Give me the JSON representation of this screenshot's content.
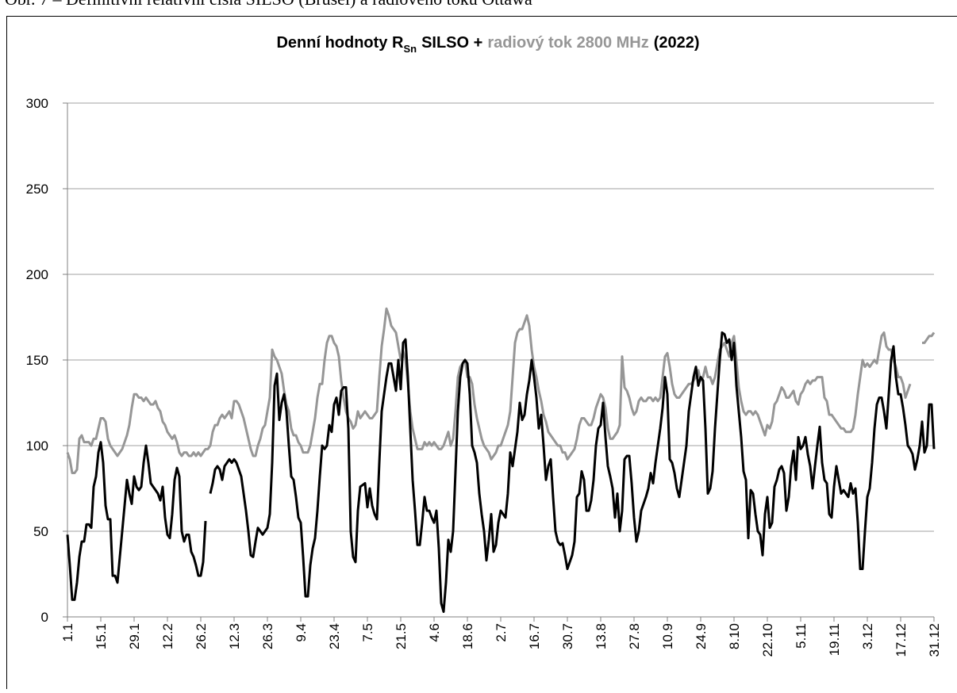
{
  "caption": "Obr. 7 – Definitivní relativní čísla SILSO (Brusel) a radiového toku Ottawa",
  "chart_data": {
    "type": "line",
    "title": [
      "Denní hodnoty R",
      "Sn",
      "SILSO +",
      "radiový tok 2800 MHz",
      "(2022)"
    ],
    "title_highlight_color": "#969696",
    "categories": [
      "1.1",
      null,
      null,
      null,
      null,
      null,
      null,
      null,
      null,
      null,
      null,
      null,
      null,
      null,
      "15.1",
      null,
      null,
      null,
      null,
      null,
      null,
      null,
      null,
      null,
      null,
      null,
      null,
      null,
      "29.1",
      null,
      null,
      null,
      null,
      null,
      null,
      null,
      null,
      null,
      null,
      null,
      null,
      null,
      "12.2",
      null,
      null,
      null,
      null,
      null,
      null,
      null,
      null,
      null,
      null,
      null,
      null,
      null,
      "26.2",
      null,
      null,
      null,
      null,
      null,
      null,
      null,
      null,
      null,
      null,
      null,
      null,
      null,
      "12.3",
      null,
      null,
      null,
      null,
      null,
      null,
      null,
      null,
      null,
      null,
      null,
      null,
      null,
      "26.3",
      null,
      null,
      null,
      null,
      null,
      null,
      null,
      null,
      null,
      null,
      null,
      null,
      null,
      "9.4",
      null,
      null,
      null,
      null,
      null,
      null,
      null,
      null,
      null,
      null,
      null,
      null,
      null,
      "23.4",
      null,
      null,
      null,
      null,
      null,
      null,
      null,
      null,
      null,
      null,
      null,
      null,
      null,
      "7.5",
      null,
      null,
      null,
      null,
      null,
      null,
      null,
      null,
      null,
      null,
      null,
      null,
      null,
      "21.5",
      null,
      null,
      null,
      null,
      null,
      null,
      null,
      null,
      null,
      null,
      null,
      null,
      null,
      "4.6",
      null,
      null,
      null,
      null,
      null,
      null,
      null,
      null,
      null,
      null,
      null,
      null,
      null,
      "18.6",
      null,
      null,
      null,
      null,
      null,
      null,
      null,
      null,
      null,
      null,
      null,
      null,
      null,
      "2.7",
      null,
      null,
      null,
      null,
      null,
      null,
      null,
      null,
      null,
      null,
      null,
      null,
      null,
      "16.7",
      null,
      null,
      null,
      null,
      null,
      null,
      null,
      null,
      null,
      null,
      null,
      null,
      null,
      "30.7",
      null,
      null,
      null,
      null,
      null,
      null,
      null,
      null,
      null,
      null,
      null,
      null,
      null,
      "13.8",
      null,
      null,
      null,
      null,
      null,
      null,
      null,
      null,
      null,
      null,
      null,
      null,
      null,
      "27.8",
      null,
      null,
      null,
      null,
      null,
      null,
      null,
      null,
      null,
      null,
      null,
      null,
      null,
      "10.9",
      null,
      null,
      null,
      null,
      null,
      null,
      null,
      null,
      null,
      null,
      null,
      null,
      null,
      "24.9",
      null,
      null,
      null,
      null,
      null,
      null,
      null,
      null,
      null,
      null,
      null,
      null,
      null,
      "8.10",
      null,
      null,
      null,
      null,
      null,
      null,
      null,
      null,
      null,
      null,
      null,
      null,
      null,
      "22.10",
      null,
      null,
      null,
      null,
      null,
      null,
      null,
      null,
      null,
      null,
      null,
      null,
      null,
      "5.11",
      null,
      null,
      null,
      null,
      null,
      null,
      null,
      null,
      null,
      null,
      null,
      null,
      null,
      "19.11",
      null,
      null,
      null,
      null,
      null,
      null,
      null,
      null,
      null,
      null,
      null,
      null,
      null,
      "3.12",
      null,
      null,
      null,
      null,
      null,
      null,
      null,
      null,
      null,
      null,
      null,
      null,
      null,
      "17.12",
      null,
      null,
      null,
      null,
      null,
      null,
      null,
      null,
      null,
      null,
      null,
      null,
      null,
      "31.12"
    ],
    "series": [
      {
        "color": "#969696",
        "values": [
          96,
          92,
          84,
          84,
          86,
          104,
          106,
          102,
          102,
          102,
          100,
          104,
          104,
          110,
          116,
          116,
          114,
          104,
          100,
          98,
          96,
          94,
          96,
          98,
          102,
          106,
          112,
          122,
          130,
          130,
          128,
          128,
          126,
          128,
          126,
          124,
          124,
          126,
          122,
          120,
          114,
          112,
          108,
          106,
          104,
          106,
          102,
          96,
          94,
          96,
          96,
          94,
          94,
          96,
          94,
          96,
          94,
          96,
          98,
          98,
          100,
          108,
          112,
          112,
          116,
          118,
          116,
          118,
          120,
          116,
          126,
          126,
          124,
          120,
          116,
          110,
          104,
          98,
          94,
          94,
          100,
          104,
          110,
          112,
          120,
          128,
          156,
          152,
          150,
          146,
          142,
          132,
          124,
          120,
          110,
          106,
          106,
          102,
          100,
          96,
          96,
          96,
          100,
          108,
          116,
          128,
          136,
          136,
          150,
          160,
          164,
          164,
          160,
          158,
          152,
          138,
          128,
          120,
          116,
          114,
          110,
          112,
          120,
          116,
          118,
          120,
          118,
          116,
          116,
          118,
          120,
          140,
          158,
          168,
          180,
          176,
          170,
          168,
          166,
          158,
          150,
          155,
          150,
          136,
          120,
          110,
          104,
          98,
          98,
          98,
          102,
          100,
          102,
          100,
          102,
          100,
          98,
          98,
          100,
          104,
          108,
          100,
          104,
          120,
          140,
          146,
          148,
          150,
          140,
          140,
          136,
          124,
          116,
          110,
          104,
          100,
          98,
          96,
          92,
          94,
          96,
          100,
          100,
          104,
          108,
          112,
          120,
          140,
          160,
          166,
          168,
          168,
          172,
          176,
          170,
          156,
          146,
          140,
          132,
          126,
          118,
          114,
          108,
          106,
          104,
          102,
          100,
          100,
          96,
          96,
          92,
          94,
          96,
          98,
          104,
          112,
          116,
          116,
          114,
          112,
          112,
          116,
          122,
          126,
          130,
          128,
          122,
          110,
          104,
          104,
          106,
          108,
          112,
          152,
          134,
          132,
          128,
          122,
          118,
          120,
          126,
          128,
          126,
          126,
          128,
          128,
          126,
          128,
          126,
          128,
          140,
          152,
          154,
          146,
          136,
          130,
          128,
          128,
          130,
          132,
          134,
          136,
          136,
          138,
          140,
          144,
          138,
          140,
          146,
          140,
          140,
          136,
          140,
          148,
          156,
          158,
          160,
          156,
          152,
          160,
          164,
          150,
          134,
          126,
          120,
          118,
          120,
          120,
          118,
          120,
          118,
          114,
          110,
          106,
          112,
          110,
          114,
          124,
          126,
          130,
          134,
          132,
          128,
          128,
          130,
          132,
          126,
          124,
          130,
          132,
          136,
          138,
          136,
          138,
          138,
          140,
          140,
          140,
          128,
          126,
          118,
          118,
          116,
          114,
          112,
          110,
          110,
          108,
          108,
          108,
          110,
          118,
          130,
          140,
          150,
          146,
          148,
          146,
          148,
          150,
          148,
          156,
          164,
          166,
          158,
          156,
          156,
          150,
          146,
          140,
          140,
          136,
          128,
          132,
          136,
          null,
          null,
          null,
          null,
          160,
          160,
          162,
          164,
          164,
          166
        ]
      },
      {
        "color": "#000000",
        "values": [
          48,
          30,
          10,
          10,
          20,
          35,
          44,
          44,
          54,
          54,
          52,
          76,
          82,
          96,
          102,
          90,
          65,
          57,
          57,
          24,
          24,
          20,
          35,
          50,
          65,
          80,
          72,
          66,
          82,
          76,
          74,
          76,
          90,
          100,
          90,
          78,
          76,
          74,
          72,
          68,
          76,
          58,
          48,
          46,
          60,
          80,
          87,
          82,
          50,
          44,
          48,
          48,
          38,
          35,
          30,
          24,
          24,
          32,
          56,
          null,
          72,
          78,
          86,
          88,
          86,
          80,
          88,
          90,
          92,
          90,
          92,
          90,
          86,
          82,
          72,
          62,
          50,
          36,
          35,
          44,
          52,
          50,
          48,
          50,
          52,
          60,
          90,
          135,
          142,
          115,
          125,
          130,
          120,
          100,
          82,
          80,
          70,
          58,
          55,
          35,
          12,
          12,
          30,
          40,
          46,
          62,
          82,
          100,
          98,
          100,
          112,
          108,
          124,
          128,
          118,
          132,
          134,
          134,
          110,
          50,
          35,
          32,
          62,
          76,
          77,
          78,
          64,
          75,
          65,
          60,
          57,
          90,
          120,
          130,
          140,
          148,
          148,
          140,
          132,
          150,
          133,
          160,
          162,
          140,
          110,
          80,
          62,
          42,
          42,
          55,
          70,
          62,
          62,
          58,
          55,
          62,
          40,
          8,
          3,
          20,
          45,
          38,
          50,
          85,
          120,
          140,
          148,
          150,
          148,
          130,
          100,
          96,
          90,
          72,
          60,
          50,
          33,
          45,
          60,
          38,
          42,
          55,
          62,
          60,
          58,
          72,
          96,
          88,
          98,
          108,
          125,
          115,
          118,
          130,
          138,
          150,
          140,
          128,
          110,
          118,
          100,
          80,
          88,
          92,
          70,
          50,
          44,
          42,
          43,
          36,
          28,
          32,
          36,
          44,
          70,
          72,
          85,
          80,
          62,
          62,
          68,
          80,
          100,
          110,
          112,
          125,
          105,
          88,
          82,
          75,
          58,
          72,
          50,
          62,
          92,
          94,
          94,
          78,
          58,
          44,
          50,
          62,
          66,
          70,
          75,
          84,
          78,
          90,
          100,
          110,
          122,
          140,
          130,
          92,
          90,
          84,
          75,
          70,
          80,
          90,
          100,
          120,
          130,
          140,
          146,
          135,
          140,
          138,
          110,
          72,
          75,
          85,
          110,
          130,
          150,
          166,
          165,
          160,
          162,
          150,
          160,
          135,
          120,
          105,
          85,
          80,
          46,
          74,
          72,
          60,
          50,
          48,
          36,
          60,
          70,
          52,
          55,
          76,
          80,
          86,
          88,
          84,
          62,
          70,
          88,
          97,
          80,
          105,
          98,
          100,
          105,
          95,
          88,
          75,
          88,
          100,
          111,
          90,
          80,
          78,
          60,
          58,
          76,
          88,
          80,
          72,
          74,
          72,
          70,
          78,
          72,
          75,
          55,
          28,
          28,
          50,
          70,
          75,
          90,
          110,
          124,
          128,
          128,
          120,
          110,
          130,
          150,
          158,
          140,
          130,
          130,
          122,
          112,
          100,
          98,
          95,
          86,
          92,
          100,
          114,
          96,
          100,
          124,
          124,
          98
        ]
      }
    ],
    "ylim": [
      0,
      300
    ],
    "yticks": [
      0,
      50,
      100,
      150,
      200,
      250,
      300
    ],
    "grid": true
  }
}
